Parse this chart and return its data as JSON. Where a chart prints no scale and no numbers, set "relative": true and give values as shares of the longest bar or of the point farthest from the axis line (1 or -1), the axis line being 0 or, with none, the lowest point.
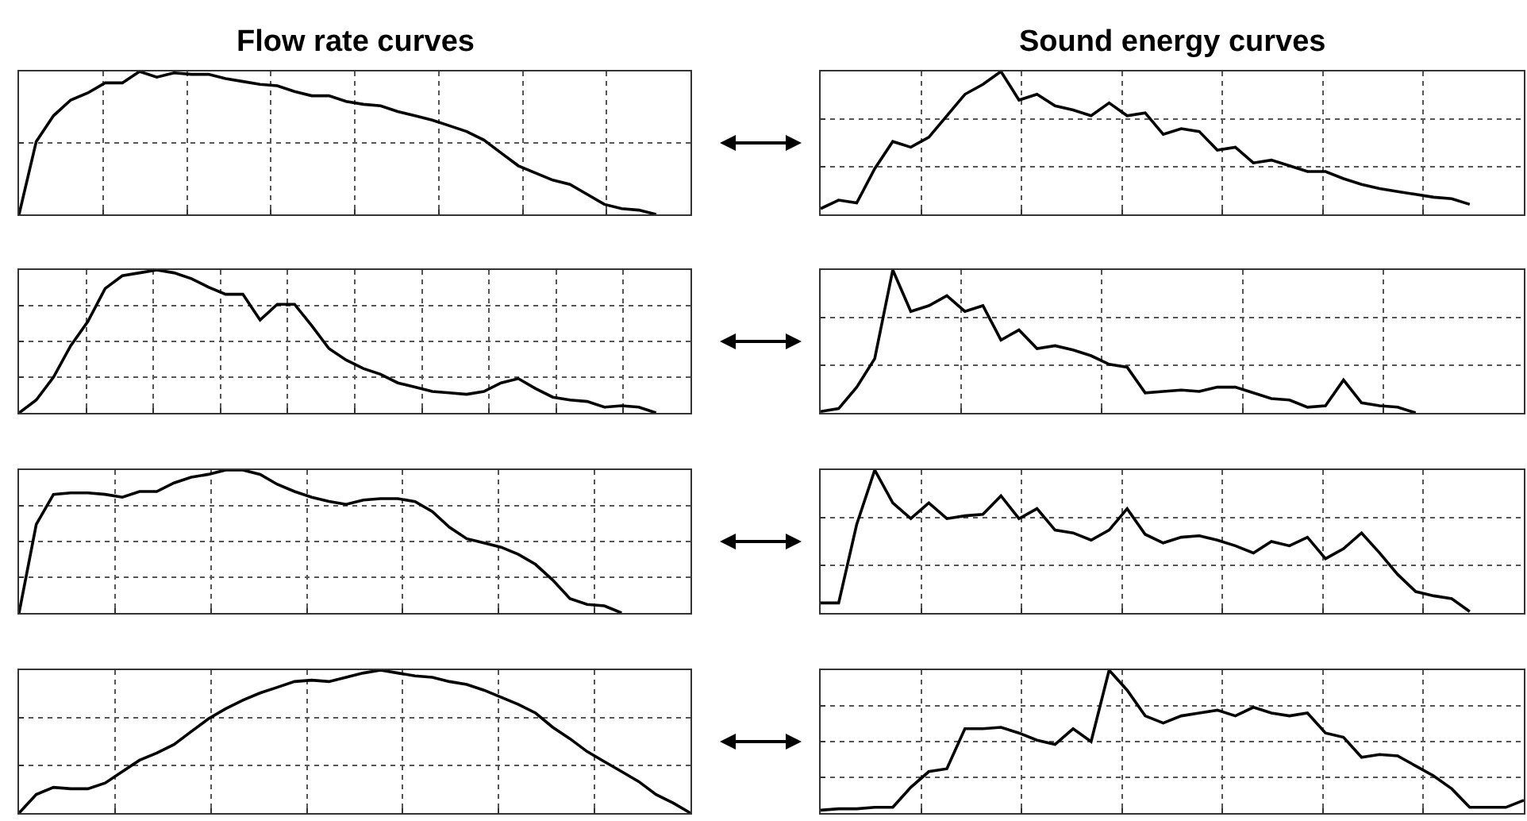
{
  "chart_data": [
    {
      "type": "line",
      "title": "Flow rate curves",
      "relative": true,
      "grid": true,
      "categories": [
        null,
        null,
        null,
        null,
        null,
        null,
        null,
        null,
        null,
        null,
        null,
        null,
        null,
        null,
        null,
        null,
        null,
        null,
        null,
        null,
        null,
        null,
        null,
        null,
        null,
        null,
        null,
        null,
        null,
        null,
        null,
        null,
        null,
        null,
        null,
        null,
        null,
        null,
        null,
        null
      ],
      "series": [
        {
          "color": "#000000",
          "values": [
            0,
            0.51,
            0.69,
            0.8,
            0.85,
            0.92,
            0.92,
            1.0,
            0.96,
            0.99,
            0.98,
            0.98,
            0.95,
            0.93,
            0.91,
            0.9,
            0.86,
            0.83,
            0.83,
            0.79,
            0.77,
            0.76,
            0.72,
            0.69,
            0.66,
            0.62,
            0.58,
            0.52,
            0.43,
            0.34,
            0.29,
            0.24,
            0.21,
            0.14,
            0.07,
            0.04,
            0.03,
            0,
            null,
            null
          ]
        }
      ]
    },
    {
      "type": "line",
      "title": "Sound energy curves",
      "relative": true,
      "grid": true,
      "categories": [
        null,
        null,
        null,
        null,
        null,
        null,
        null,
        null,
        null,
        null,
        null,
        null,
        null,
        null,
        null,
        null,
        null,
        null,
        null,
        null,
        null,
        null,
        null,
        null,
        null,
        null,
        null,
        null,
        null,
        null,
        null,
        null,
        null,
        null,
        null,
        null,
        null,
        null,
        null,
        null
      ],
      "series": [
        {
          "color": "#000000",
          "values": [
            0.04,
            0.1,
            0.08,
            0.32,
            0.51,
            0.47,
            0.54,
            0.69,
            0.84,
            0.91,
            1.0,
            0.8,
            0.84,
            0.76,
            0.73,
            0.69,
            0.78,
            0.69,
            0.71,
            0.56,
            0.6,
            0.58,
            0.45,
            0.47,
            0.36,
            0.38,
            0.34,
            0.3,
            0.3,
            0.25,
            0.21,
            0.18,
            0.16,
            0.14,
            0.12,
            0.11,
            0.07,
            null,
            null,
            null
          ]
        }
      ]
    },
    {
      "type": "line",
      "relative": true,
      "grid": true,
      "categories": [
        null,
        null,
        null,
        null,
        null,
        null,
        null,
        null,
        null,
        null,
        null,
        null,
        null,
        null,
        null,
        null,
        null,
        null,
        null,
        null,
        null,
        null,
        null,
        null,
        null,
        null,
        null,
        null,
        null,
        null,
        null,
        null,
        null,
        null,
        null,
        null,
        null,
        null,
        null,
        null
      ],
      "series": [
        {
          "color": "#000000",
          "values": [
            0,
            0.09,
            0.25,
            0.47,
            0.64,
            0.87,
            0.96,
            0.98,
            1.0,
            0.98,
            0.94,
            0.88,
            0.83,
            0.83,
            0.65,
            0.76,
            0.76,
            0.61,
            0.45,
            0.37,
            0.31,
            0.27,
            0.21,
            0.18,
            0.15,
            0.14,
            0.13,
            0.15,
            0.21,
            0.24,
            0.17,
            0.11,
            0.09,
            0.08,
            0.04,
            0.05,
            0.04,
            0,
            null,
            null
          ]
        }
      ]
    },
    {
      "type": "line",
      "relative": true,
      "grid": true,
      "categories": [
        null,
        null,
        null,
        null,
        null,
        null,
        null,
        null,
        null,
        null,
        null,
        null,
        null,
        null,
        null,
        null,
        null,
        null,
        null,
        null,
        null,
        null,
        null,
        null,
        null,
        null,
        null,
        null,
        null,
        null,
        null,
        null,
        null,
        null,
        null,
        null,
        null,
        null,
        null,
        null
      ],
      "series": [
        {
          "color": "#000000",
          "values": [
            0.01,
            0.03,
            0.18,
            0.38,
            1.0,
            0.71,
            0.75,
            0.82,
            0.71,
            0.75,
            0.51,
            0.58,
            0.45,
            0.47,
            0.44,
            0.4,
            0.34,
            0.32,
            0.14,
            0.15,
            0.16,
            0.15,
            0.18,
            0.18,
            0.14,
            0.1,
            0.09,
            0.04,
            0.05,
            0.23,
            0.07,
            0.05,
            0.04,
            0,
            null,
            null,
            null,
            null,
            null,
            null
          ]
        }
      ]
    },
    {
      "type": "line",
      "relative": true,
      "grid": true,
      "categories": [
        null,
        null,
        null,
        null,
        null,
        null,
        null,
        null,
        null,
        null,
        null,
        null,
        null,
        null,
        null,
        null,
        null,
        null,
        null,
        null,
        null,
        null,
        null,
        null,
        null,
        null,
        null,
        null,
        null,
        null,
        null,
        null,
        null,
        null,
        null,
        null,
        null,
        null,
        null,
        null
      ],
      "series": [
        {
          "color": "#000000",
          "values": [
            0,
            0.62,
            0.83,
            0.84,
            0.84,
            0.83,
            0.81,
            0.85,
            0.85,
            0.91,
            0.95,
            0.97,
            1.0,
            1.0,
            0.97,
            0.9,
            0.85,
            0.81,
            0.78,
            0.76,
            0.79,
            0.8,
            0.8,
            0.78,
            0.71,
            0.6,
            0.52,
            0.49,
            0.46,
            0.41,
            0.34,
            0.23,
            0.1,
            0.06,
            0.05,
            0,
            null,
            null,
            null,
            null
          ]
        }
      ]
    },
    {
      "type": "line",
      "relative": true,
      "grid": true,
      "categories": [
        null,
        null,
        null,
        null,
        null,
        null,
        null,
        null,
        null,
        null,
        null,
        null,
        null,
        null,
        null,
        null,
        null,
        null,
        null,
        null,
        null,
        null,
        null,
        null,
        null,
        null,
        null,
        null,
        null,
        null,
        null,
        null,
        null,
        null,
        null,
        null,
        null,
        null,
        null,
        null
      ],
      "series": [
        {
          "color": "#000000",
          "values": [
            0.07,
            0.07,
            0.62,
            1.0,
            0.77,
            0.66,
            0.77,
            0.66,
            0.68,
            0.69,
            0.82,
            0.66,
            0.73,
            0.58,
            0.56,
            0.51,
            0.58,
            0.73,
            0.55,
            0.49,
            0.53,
            0.54,
            0.51,
            0.47,
            0.42,
            0.5,
            0.47,
            0.53,
            0.38,
            0.45,
            0.56,
            0.42,
            0.27,
            0.15,
            0.12,
            0.1,
            0.01,
            null,
            null,
            null
          ]
        }
      ]
    },
    {
      "type": "line",
      "relative": true,
      "grid": true,
      "categories": [
        null,
        null,
        null,
        null,
        null,
        null,
        null,
        null,
        null,
        null,
        null,
        null,
        null,
        null,
        null,
        null,
        null,
        null,
        null,
        null,
        null,
        null,
        null,
        null,
        null,
        null,
        null,
        null,
        null,
        null,
        null,
        null,
        null,
        null,
        null,
        null,
        null,
        null,
        null,
        null
      ],
      "series": [
        {
          "color": "#000000",
          "values": [
            0,
            0.13,
            0.18,
            0.17,
            0.17,
            0.21,
            0.29,
            0.37,
            0.42,
            0.48,
            0.57,
            0.66,
            0.73,
            0.79,
            0.84,
            0.88,
            0.92,
            0.93,
            0.92,
            0.95,
            0.98,
            1.0,
            0.98,
            0.96,
            0.95,
            0.92,
            0.9,
            0.86,
            0.81,
            0.76,
            0.7,
            0.6,
            0.52,
            0.43,
            0.36,
            0.29,
            0.22,
            0.13,
            0.07,
            0
          ]
        }
      ]
    },
    {
      "type": "line",
      "relative": true,
      "grid": true,
      "categories": [
        null,
        null,
        null,
        null,
        null,
        null,
        null,
        null,
        null,
        null,
        null,
        null,
        null,
        null,
        null,
        null,
        null,
        null,
        null,
        null,
        null,
        null,
        null,
        null,
        null,
        null,
        null,
        null,
        null,
        null,
        null,
        null,
        null,
        null,
        null,
        null,
        null,
        null,
        null,
        null
      ],
      "series": [
        {
          "color": "#000000",
          "values": [
            0.02,
            0.03,
            0.03,
            0.04,
            0.04,
            0.18,
            0.29,
            0.31,
            0.59,
            0.59,
            0.6,
            0.56,
            0.51,
            0.48,
            0.59,
            0.5,
            1.0,
            0.86,
            0.68,
            0.63,
            0.68,
            0.7,
            0.72,
            0.68,
            0.74,
            0.7,
            0.68,
            0.7,
            0.56,
            0.53,
            0.39,
            0.41,
            0.4,
            0.33,
            0.26,
            0.17,
            0.04,
            0.04,
            0.04,
            0.09
          ]
        }
      ]
    }
  ]
}
